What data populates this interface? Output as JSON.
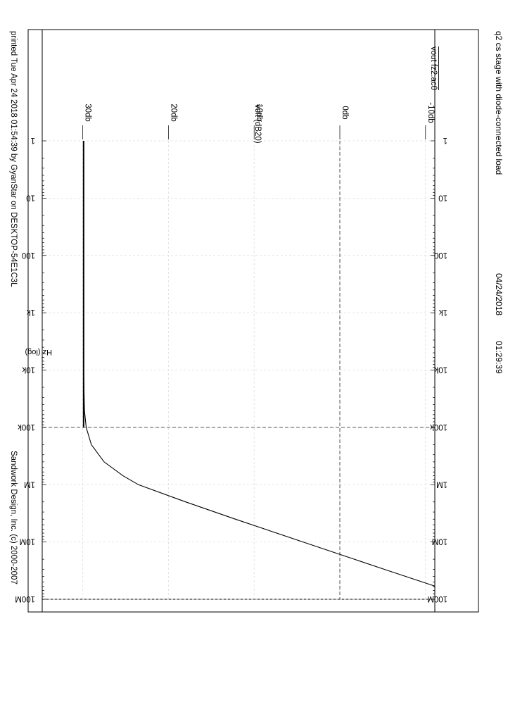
{
  "header": {
    "title": "q2 cs stage with diode-connected load",
    "date": "04/24/2018",
    "time": "01:29:39"
  },
  "footer": {
    "printed": "printed Tue Apr 24 2018 01:54:39 by GyanStar on DESKTOP-54E1C3L",
    "copyright": "Sandwork Design, Inc. (c) 2000-2007"
  },
  "chart_data": {
    "type": "line",
    "title": "q2 cs stage with diode-connected load",
    "xlabel": "Hz (log)",
    "ylabel": "volt (dB20)",
    "x_scale": "log",
    "xlim": [
      1,
      100000000
    ],
    "ylim": [
      -12,
      31
    ],
    "x_ticks": [
      "1",
      "10",
      "100",
      "1k",
      "10k",
      "100k",
      "1M",
      "10M",
      "100M"
    ],
    "y_ticks": [
      "-10db",
      "0db",
      "10db",
      "20db",
      "30db"
    ],
    "y_tick_values": [
      -10,
      0,
      10,
      20,
      30
    ],
    "grid": true,
    "legend": "top-left",
    "series": [
      {
        "name": "vout fz2.ac0",
        "color": "#000000",
        "x": [
          1,
          10,
          100,
          1000,
          10000,
          50000,
          100000,
          200000,
          400000,
          700000,
          1000000,
          2000000,
          4000000,
          10000000,
          30000000,
          100000000
        ],
        "y": [
          29.9,
          29.9,
          29.9,
          29.9,
          29.9,
          29.8,
          29.6,
          29.0,
          27.5,
          25.3,
          23.5,
          18.0,
          12.2,
          4.3,
          -5.2,
          -15.7
        ]
      }
    ],
    "reference_lines": {
      "x_values": [
        100000
      ],
      "y_values": [
        0
      ]
    }
  }
}
